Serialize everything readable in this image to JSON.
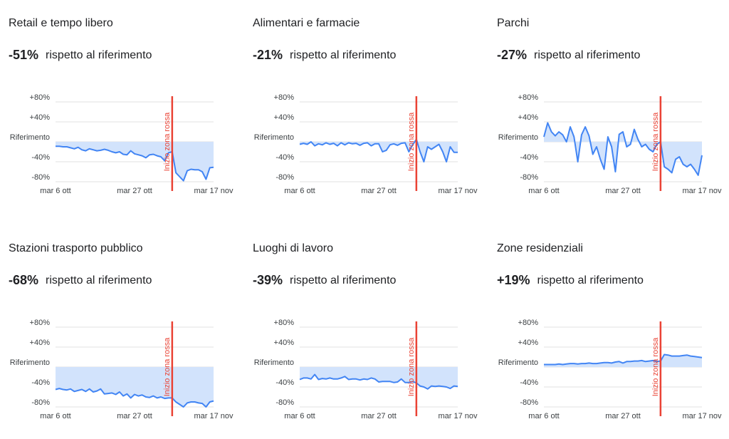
{
  "chart_data": [
    {
      "type": "line",
      "title": "Retail e tempo libero",
      "headline": {
        "value": -51,
        "label": "-51%"
      },
      "headline_suffix": "rispetto al riferimento",
      "categories": [
        "mar 6 ott",
        null,
        null,
        null,
        null,
        null,
        null,
        null,
        null,
        null,
        null,
        null,
        null,
        null,
        null,
        null,
        null,
        null,
        null,
        null,
        null,
        "mar 27 ott",
        null,
        null,
        null,
        null,
        null,
        null,
        null,
        null,
        null,
        null,
        null,
        null,
        null,
        null,
        null,
        null,
        null,
        null,
        null,
        null,
        "mar 17 nov"
      ],
      "series": [
        {
          "name": "Retail e tempo libero",
          "color": "#4285f4",
          "values": [
            -9,
            -9,
            -10,
            -10,
            -12,
            -14,
            -11,
            -16,
            -18,
            -14,
            -16,
            -18,
            -17,
            -15,
            -17,
            -20,
            -22,
            -20,
            -25,
            -26,
            -18,
            -24,
            -26,
            -28,
            -32,
            -26,
            -25,
            -28,
            -30,
            -38,
            -22,
            -20,
            -62,
            -70,
            -78,
            -58,
            -55,
            -56,
            -56,
            -60,
            -75,
            -52,
            -51
          ]
        }
      ],
      "ylim": [
        -80,
        80
      ],
      "yticks": [
        {
          "value": -80,
          "label": "-80%"
        },
        {
          "value": -40,
          "label": "-40%"
        },
        {
          "value": 0,
          "label": "Riferimento"
        },
        {
          "value": 40,
          "label": "+40%"
        },
        {
          "value": 80,
          "label": "+80%"
        }
      ],
      "grid": true,
      "area_color": "#d2e3fc",
      "annotation": {
        "text": "Inizio zona rossa",
        "category_index": 31,
        "color": "#ea4335"
      }
    },
    {
      "type": "line",
      "title": "Alimentari e farmacie",
      "headline": {
        "value": -21,
        "label": "-21%"
      },
      "headline_suffix": "rispetto al riferimento",
      "categories": [
        "mar 6 ott",
        null,
        null,
        null,
        null,
        null,
        null,
        null,
        null,
        null,
        null,
        null,
        null,
        null,
        null,
        null,
        null,
        null,
        null,
        null,
        null,
        "mar 27 ott",
        null,
        null,
        null,
        null,
        null,
        null,
        null,
        null,
        null,
        null,
        null,
        null,
        null,
        null,
        null,
        null,
        null,
        null,
        null,
        null,
        "mar 17 nov"
      ],
      "series": [
        {
          "name": "Alimentari e farmacie",
          "color": "#4285f4",
          "values": [
            -5,
            -3,
            -5,
            0,
            -8,
            -4,
            -6,
            -2,
            -5,
            -3,
            -8,
            -2,
            -6,
            -2,
            -4,
            -3,
            -7,
            -3,
            -2,
            -8,
            -4,
            -4,
            -20,
            -17,
            -6,
            -4,
            -7,
            -3,
            -2,
            -20,
            -6,
            5,
            -20,
            -40,
            -10,
            -15,
            -10,
            -5,
            -20,
            -40,
            -10,
            -21,
            -21
          ]
        }
      ],
      "ylim": [
        -80,
        80
      ],
      "yticks": [
        {
          "value": -80,
          "label": "-80%"
        },
        {
          "value": -40,
          "label": "-40%"
        },
        {
          "value": 0,
          "label": "Riferimento"
        },
        {
          "value": 40,
          "label": "+40%"
        },
        {
          "value": 80,
          "label": "+80%"
        }
      ],
      "grid": true,
      "area_color": "#d2e3fc",
      "annotation": {
        "text": "Inizio zona rossa",
        "category_index": 31,
        "color": "#ea4335"
      }
    },
    {
      "type": "line",
      "title": "Parchi",
      "headline": {
        "value": -27,
        "label": "-27%"
      },
      "headline_suffix": "rispetto al riferimento",
      "categories": [
        "mar 6 ott",
        null,
        null,
        null,
        null,
        null,
        null,
        null,
        null,
        null,
        null,
        null,
        null,
        null,
        null,
        null,
        null,
        null,
        null,
        null,
        null,
        "mar 27 ott",
        null,
        null,
        null,
        null,
        null,
        null,
        null,
        null,
        null,
        null,
        null,
        null,
        null,
        null,
        null,
        null,
        null,
        null,
        null,
        null,
        "mar 17 nov"
      ],
      "series": [
        {
          "name": "Parchi",
          "color": "#4285f4",
          "values": [
            10,
            38,
            20,
            12,
            20,
            14,
            0,
            30,
            10,
            -40,
            14,
            30,
            12,
            -25,
            -10,
            -35,
            -55,
            10,
            -10,
            -60,
            15,
            20,
            -10,
            -5,
            25,
            5,
            -10,
            -5,
            -15,
            -20,
            -5,
            0,
            -50,
            -55,
            -62,
            -35,
            -30,
            -45,
            -50,
            -45,
            -55,
            -67,
            -27
          ]
        }
      ],
      "ylim": [
        -80,
        80
      ],
      "yticks": [
        {
          "value": -80,
          "label": "-80%"
        },
        {
          "value": -40,
          "label": "-40%"
        },
        {
          "value": 0,
          "label": "Riferimento"
        },
        {
          "value": 40,
          "label": "+40%"
        },
        {
          "value": 80,
          "label": "+80%"
        }
      ],
      "grid": true,
      "area_color": "#d2e3fc",
      "annotation": {
        "text": "Inizio zona rossa",
        "category_index": 31,
        "color": "#ea4335"
      }
    },
    {
      "type": "line",
      "title": "Stazioni trasporto pubblico",
      "headline": {
        "value": -68,
        "label": "-68%"
      },
      "headline_suffix": "rispetto al riferimento",
      "categories": [
        "mar 6 ott",
        null,
        null,
        null,
        null,
        null,
        null,
        null,
        null,
        null,
        null,
        null,
        null,
        null,
        null,
        null,
        null,
        null,
        null,
        null,
        null,
        "mar 27 ott",
        null,
        null,
        null,
        null,
        null,
        null,
        null,
        null,
        null,
        null,
        null,
        null,
        null,
        null,
        null,
        null,
        null,
        null,
        null,
        null,
        "mar 17 nov"
      ],
      "series": [
        {
          "name": "Stazioni trasporto pubblico",
          "color": "#4285f4",
          "values": [
            -45,
            -43,
            -45,
            -46,
            -44,
            -49,
            -47,
            -45,
            -49,
            -44,
            -50,
            -48,
            -44,
            -54,
            -53,
            -52,
            -55,
            -50,
            -58,
            -54,
            -62,
            -55,
            -58,
            -56,
            -60,
            -61,
            -58,
            -62,
            -60,
            -63,
            -62,
            -62,
            -70,
            -75,
            -80,
            -72,
            -70,
            -70,
            -72,
            -73,
            -80,
            -70,
            -68
          ]
        }
      ],
      "ylim": [
        -80,
        80
      ],
      "yticks": [
        {
          "value": -80,
          "label": "-80%"
        },
        {
          "value": -40,
          "label": "-40%"
        },
        {
          "value": 0,
          "label": "Riferimento"
        },
        {
          "value": 40,
          "label": "+40%"
        },
        {
          "value": 80,
          "label": "+80%"
        }
      ],
      "grid": true,
      "area_color": "#d2e3fc",
      "annotation": {
        "text": "Inizio zona rossa",
        "category_index": 31,
        "color": "#ea4335"
      }
    },
    {
      "type": "line",
      "title": "Luoghi di lavoro",
      "headline": {
        "value": -39,
        "label": "-39%"
      },
      "headline_suffix": "rispetto al riferimento",
      "categories": [
        "mar 6 ott",
        null,
        null,
        null,
        null,
        null,
        null,
        null,
        null,
        null,
        null,
        null,
        null,
        null,
        null,
        null,
        null,
        null,
        null,
        null,
        null,
        "mar 27 ott",
        null,
        null,
        null,
        null,
        null,
        null,
        null,
        null,
        null,
        null,
        null,
        null,
        null,
        null,
        null,
        null,
        null,
        null,
        null,
        null,
        "mar 17 nov"
      ],
      "series": [
        {
          "name": "Luoghi di lavoro",
          "color": "#4285f4",
          "values": [
            -25,
            -22,
            -22,
            -24,
            -15,
            -25,
            -23,
            -24,
            -22,
            -24,
            -24,
            -22,
            -19,
            -25,
            -24,
            -24,
            -26,
            -24,
            -25,
            -22,
            -24,
            -30,
            -29,
            -29,
            -29,
            -31,
            -30,
            -24,
            -31,
            -31,
            -29,
            -32,
            -38,
            -40,
            -44,
            -38,
            -39,
            -38,
            -39,
            -40,
            -43,
            -38,
            -39
          ]
        }
      ],
      "ylim": [
        -80,
        80
      ],
      "yticks": [
        {
          "value": -80,
          "label": "-80%"
        },
        {
          "value": -40,
          "label": "-40%"
        },
        {
          "value": 0,
          "label": "Riferimento"
        },
        {
          "value": 40,
          "label": "+40%"
        },
        {
          "value": 80,
          "label": "+80%"
        }
      ],
      "grid": true,
      "area_color": "#d2e3fc",
      "annotation": {
        "text": "Inizio zona rossa",
        "category_index": 31,
        "color": "#ea4335"
      }
    },
    {
      "type": "line",
      "title": "Zone residenziali",
      "headline": {
        "value": 19,
        "label": "+19%"
      },
      "headline_suffix": "rispetto al riferimento",
      "categories": [
        "mar 6 ott",
        null,
        null,
        null,
        null,
        null,
        null,
        null,
        null,
        null,
        null,
        null,
        null,
        null,
        null,
        null,
        null,
        null,
        null,
        null,
        null,
        "mar 27 ott",
        null,
        null,
        null,
        null,
        null,
        null,
        null,
        null,
        null,
        null,
        null,
        null,
        null,
        null,
        null,
        null,
        null,
        null,
        null,
        null,
        "mar 17 nov"
      ],
      "series": [
        {
          "name": "Zone residenziali",
          "color": "#4285f4",
          "values": [
            5,
            5,
            5,
            5,
            6,
            5,
            6,
            7,
            7,
            6,
            7,
            7,
            8,
            7,
            7,
            8,
            9,
            9,
            8,
            10,
            11,
            8,
            11,
            11,
            12,
            12,
            13,
            11,
            12,
            13,
            11,
            12,
            25,
            24,
            22,
            22,
            22,
            23,
            24,
            22,
            21,
            20,
            19
          ]
        }
      ],
      "ylim": [
        -80,
        80
      ],
      "yticks": [
        {
          "value": -80,
          "label": "-80%"
        },
        {
          "value": -40,
          "label": "-40%"
        },
        {
          "value": 0,
          "label": "Riferimento"
        },
        {
          "value": 40,
          "label": "+40%"
        },
        {
          "value": 80,
          "label": "+80%"
        }
      ],
      "grid": true,
      "area_color": "#d2e3fc",
      "annotation": {
        "text": "Inizio zona rossa",
        "category_index": 31,
        "color": "#ea4335"
      }
    }
  ]
}
